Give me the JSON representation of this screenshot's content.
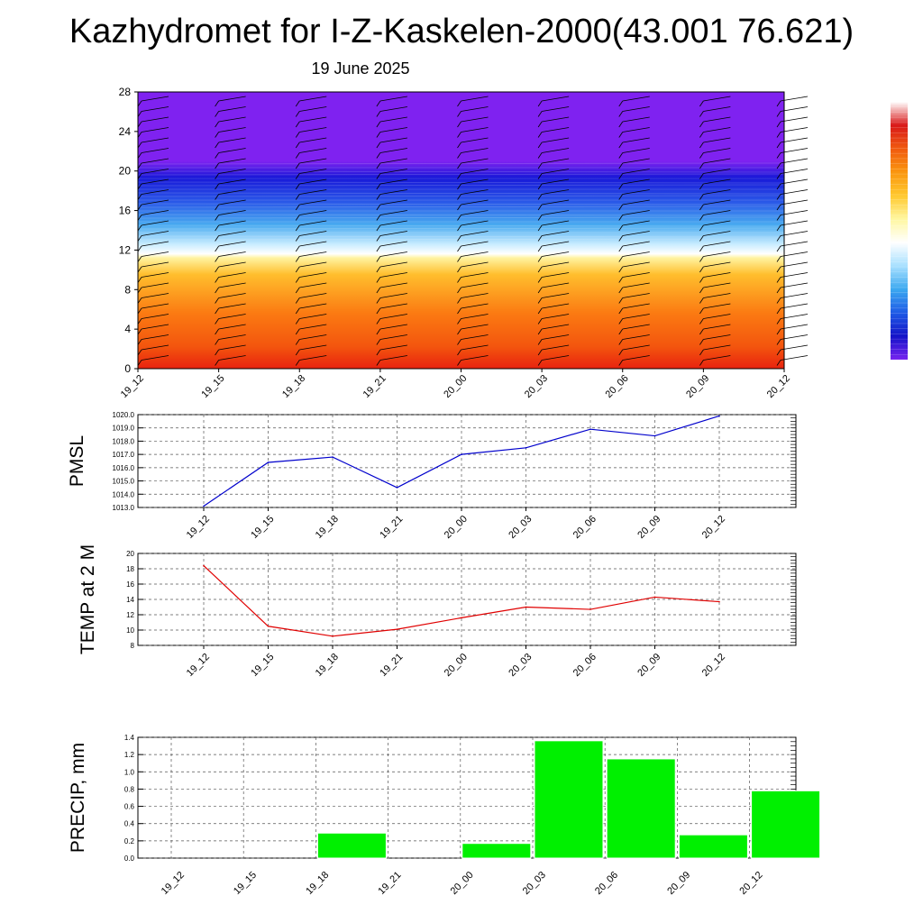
{
  "title": "Kazhydromet for I-Z-Kaskelen-2000(43.001 76.621)",
  "subtitle": "19 June 2025",
  "colorbar": {
    "stops": [
      "#ffffff",
      "#d91919",
      "#f05a0f",
      "#fa960f",
      "#ffc82d",
      "#fff7a0",
      "#ffffff",
      "#a8e0ff",
      "#3ca8f0",
      "#1e5ae6",
      "#1414c8",
      "#7823f0"
    ]
  },
  "chart_data": [
    {
      "type": "heatmap",
      "ylim": [
        0,
        28
      ],
      "yticks": [
        "0",
        "4",
        "8",
        "12",
        "16",
        "20",
        "24",
        "28"
      ],
      "categories": [
        "19_12",
        "19_15",
        "19_18",
        "19_21",
        "20_00",
        "20_03",
        "20_06",
        "20_09",
        "20_12"
      ],
      "colors": {
        "top": "#7f22f0",
        "mid": "#ffffff",
        "bottom": "#e8230f"
      }
    },
    {
      "type": "line",
      "ylabel": "PMSL",
      "categories": [
        "19_12",
        "19_15",
        "19_18",
        "19_21",
        "20_00",
        "20_03",
        "20_06",
        "20_09",
        "20_12"
      ],
      "values": [
        1013.1,
        1016.4,
        1016.8,
        1014.5,
        1017.0,
        1017.5,
        1018.9,
        1018.4,
        1019.9
      ],
      "ylim": [
        1013.0,
        1020.0
      ],
      "yticks": [
        "1013.0",
        "1014.0",
        "1015.0",
        "1016.0",
        "1017.0",
        "1018.0",
        "1019.0",
        "1020.0"
      ],
      "color": "#0000cc"
    },
    {
      "type": "line",
      "ylabel": "TEMP at 2 M",
      "categories": [
        "19_12",
        "19_15",
        "19_18",
        "19_21",
        "20_00",
        "20_03",
        "20_06",
        "20_09",
        "20_12"
      ],
      "values": [
        18.4,
        10.5,
        9.2,
        10.1,
        11.6,
        13.0,
        12.7,
        14.3,
        13.7
      ],
      "ylim": [
        8,
        20
      ],
      "yticks": [
        "8",
        "10",
        "12",
        "14",
        "16",
        "18",
        "20"
      ],
      "color": "#e00000"
    },
    {
      "type": "bar",
      "ylabel": "PRECIP, mm",
      "categories": [
        "19_12",
        "19_15",
        "19_18",
        "19_21",
        "20_00",
        "20_03",
        "20_06",
        "20_09",
        "20_12"
      ],
      "values": [
        0,
        0,
        0.29,
        0,
        0.17,
        1.36,
        1.15,
        0.27,
        0.78
      ],
      "ylim": [
        0,
        1.4
      ],
      "yticks": [
        "0.0",
        "0.2",
        "0.4",
        "0.6",
        "0.8",
        "1.0",
        "1.2",
        "1.4"
      ],
      "color": "#00f000"
    }
  ]
}
